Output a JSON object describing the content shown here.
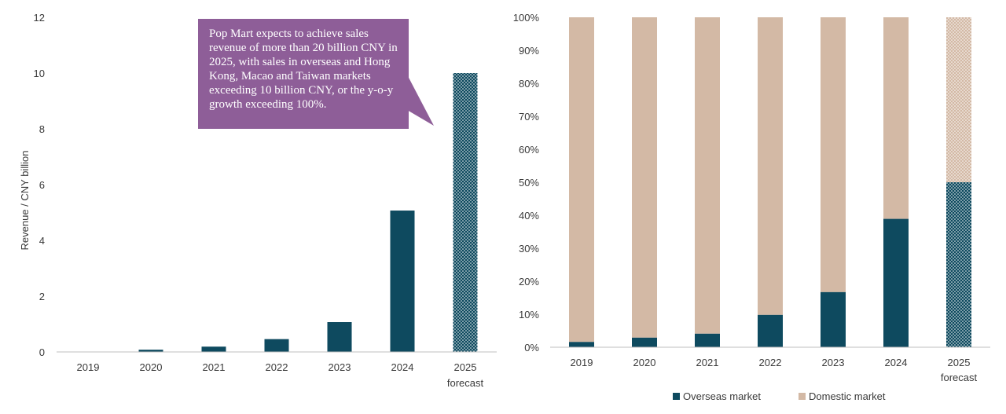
{
  "callout": {
    "text": "Pop Mart expects to achieve sales revenue of more than 20 billion CNY in 2025, with sales in overseas and Hong Kong, Macao and Taiwan markets exceeding 10 billion CNY, or the y-o-y growth exceeding 100%."
  },
  "colors": {
    "overseas": "#0e4a5f",
    "domestic": "#d3b9a5",
    "callout": "#8e5e98",
    "axis": "#bfbfbf"
  },
  "chart_data": [
    {
      "type": "bar",
      "categories": [
        "2019",
        "2020",
        "2021",
        "2022",
        "2023",
        "2024",
        "2025"
      ],
      "category_sublabels": [
        "",
        "",
        "",
        "",
        "",
        "",
        "forecast"
      ],
      "values": [
        0.01,
        0.08,
        0.19,
        0.46,
        1.07,
        5.07,
        10.0
      ],
      "forecast_index": 6,
      "ylabel": "Revenue / CNY billion",
      "ylim": [
        0,
        12
      ],
      "yticks": [
        0,
        2,
        4,
        6,
        8,
        10,
        12
      ],
      "grid": false
    },
    {
      "type": "bar",
      "stacked": true,
      "categories": [
        "2019",
        "2020",
        "2021",
        "2022",
        "2023",
        "2024",
        "2025"
      ],
      "category_sublabels": [
        "",
        "",
        "",
        "",
        "",
        "",
        "forecast"
      ],
      "series": [
        {
          "name": "Overseas market",
          "values": [
            1.6,
            2.9,
            4.1,
            9.8,
            16.7,
            38.9,
            50.0
          ]
        },
        {
          "name": "Domestic market",
          "values": [
            98.4,
            97.1,
            95.9,
            90.2,
            83.3,
            61.1,
            50.0
          ]
        }
      ],
      "forecast_index": 6,
      "ylim": [
        0,
        100
      ],
      "yticks": [
        "0%",
        "10%",
        "20%",
        "30%",
        "40%",
        "50%",
        "60%",
        "70%",
        "80%",
        "90%",
        "100%"
      ],
      "legend": "bottom",
      "grid": false
    }
  ]
}
